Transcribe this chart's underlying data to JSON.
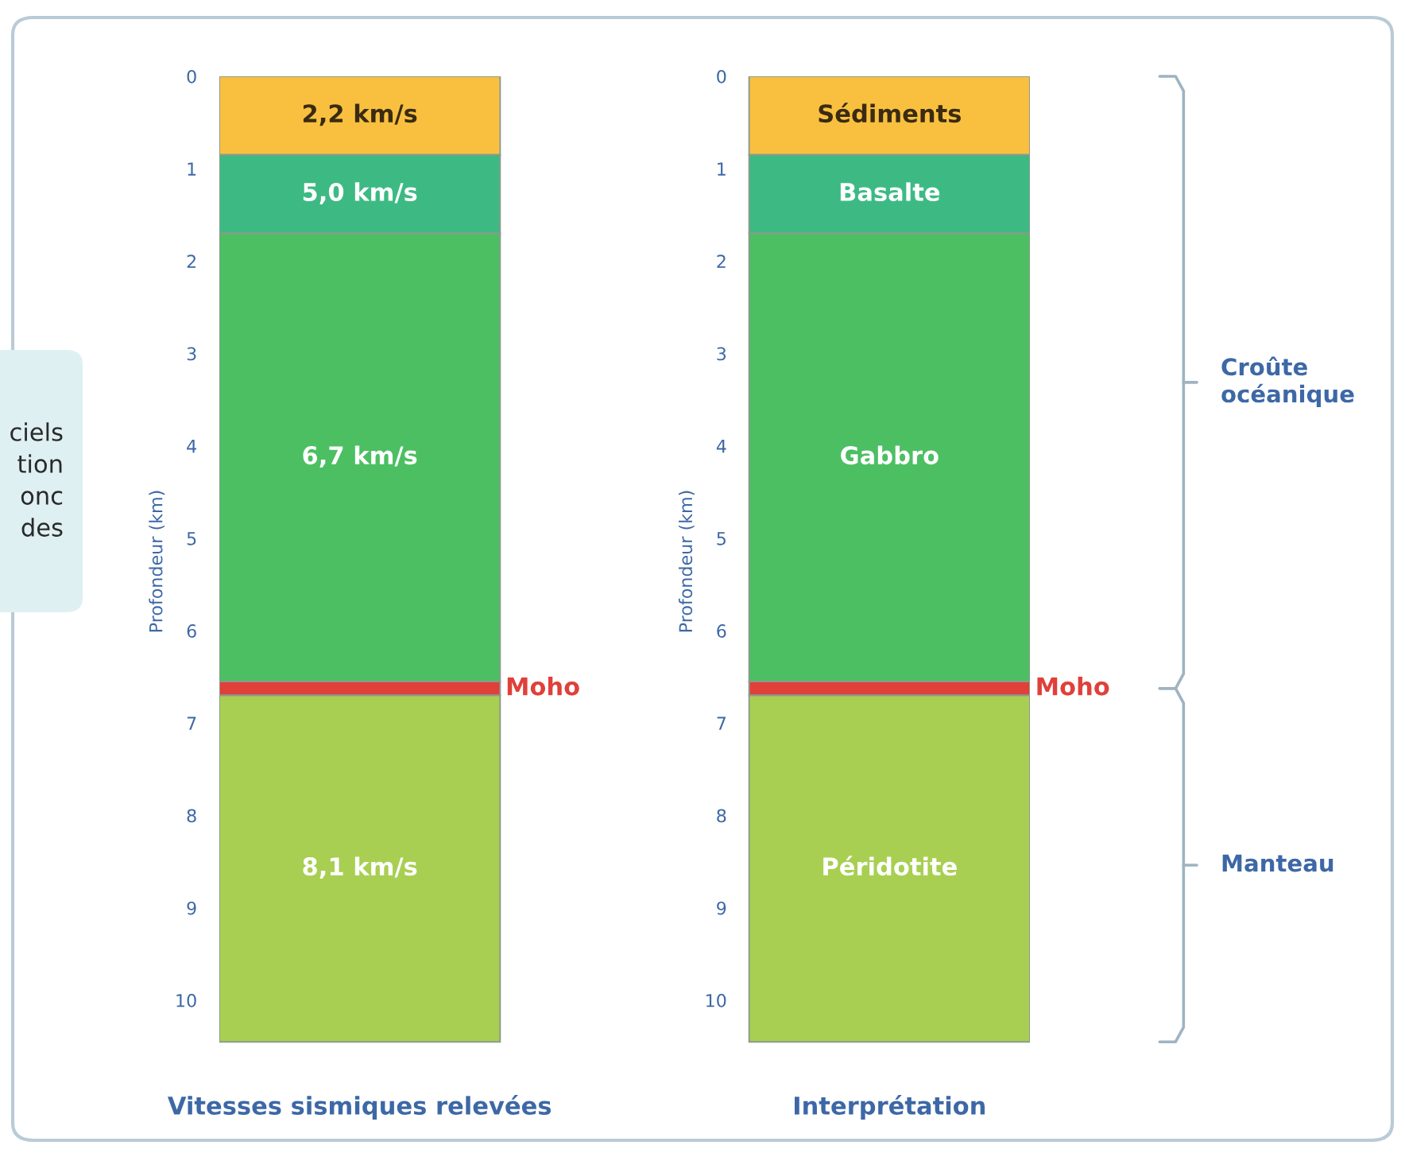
{
  "chart_data": {
    "type": "bar",
    "stacked": true,
    "categories": [
      "Vitesses sismiques relevées",
      "Interprétation"
    ],
    "ylabel": "Profondeur (km)",
    "ylim": [
      10.5,
      0
    ],
    "yticks": [
      0,
      1,
      2,
      3,
      4,
      5,
      6,
      7,
      8,
      9,
      10
    ],
    "y2label": "Profondeur (km)",
    "y2lim": [
      10.5,
      0
    ],
    "y2ticks": [
      0,
      1,
      2,
      3,
      4,
      5,
      6,
      7,
      8,
      9,
      10
    ],
    "legend": false,
    "series": [
      {
        "name": "2,2 km/s",
        "color": "#f9c03f",
        "values": [
          0.85,
          null
        ]
      },
      {
        "name": "Sédiments",
        "color": "#f9c03f",
        "values": [
          null,
          0.85
        ]
      },
      {
        "name": "5,0 km/s",
        "color": "#3dba84",
        "values": [
          0.85,
          null
        ]
      },
      {
        "name": "Basalte",
        "color": "#3dba84",
        "values": [
          null,
          0.85
        ]
      },
      {
        "name": "6,7 km/s",
        "color": "#4cbf63",
        "values": [
          4.85,
          null
        ]
      },
      {
        "name": "Gabbro",
        "color": "#4cbf63",
        "values": [
          null,
          4.85
        ]
      },
      {
        "name": "Moho",
        "color": "#e0403a",
        "values": [
          0.15,
          0.15
        ]
      },
      {
        "name": "8,1 km/s",
        "color": "#a8cf52",
        "values": [
          3.75,
          null
        ]
      },
      {
        "name": "Péridotite",
        "color": "#a8cf52",
        "values": [
          null,
          3.75
        ]
      }
    ],
    "annotations": [
      "ciels\ntion\nonc\ndes",
      "Croûte océanique",
      "Manteau"
    ]
  }
}
